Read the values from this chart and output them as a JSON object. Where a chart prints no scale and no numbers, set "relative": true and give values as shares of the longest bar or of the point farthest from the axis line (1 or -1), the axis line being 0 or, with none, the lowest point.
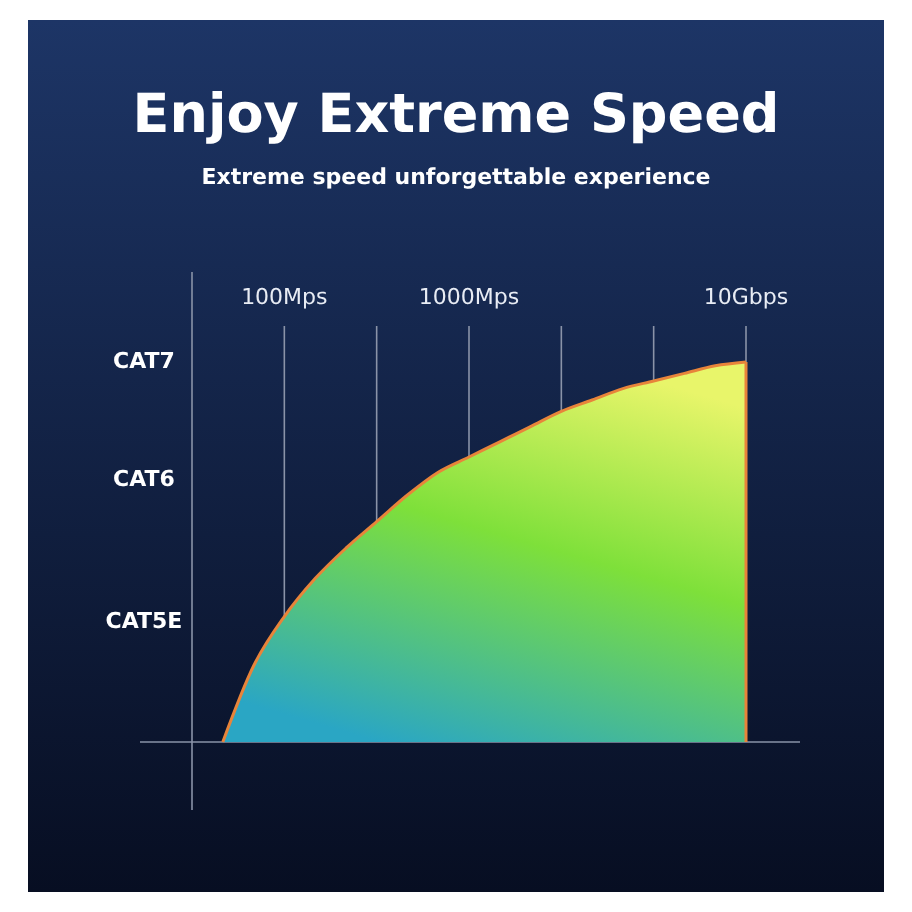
{
  "chart_data": {
    "type": "area",
    "title": "Enjoy Extreme Speed",
    "subtitle": "Extreme speed unforgettable experience",
    "relative": true,
    "grid": "x",
    "categories": [
      null,
      null,
      null,
      "100Mps",
      null,
      null,
      null,
      null,
      null,
      "1000Mps",
      null,
      null,
      null,
      null,
      null,
      null,
      null,
      null,
      "10Gbps"
    ],
    "series": [
      {
        "color": "#7ee03a",
        "values": [
          null,
          0,
          0.2,
          0.33,
          0.43,
          0.51,
          0.58,
          0.65,
          0.71,
          0.75,
          0.79,
          0.83,
          0.87,
          0.9,
          0.93,
          0.95,
          0.97,
          0.99,
          1.0
        ]
      }
    ],
    "annotations": [
      "CAT7",
      "CAT6",
      "CAT5E"
    ]
  }
}
